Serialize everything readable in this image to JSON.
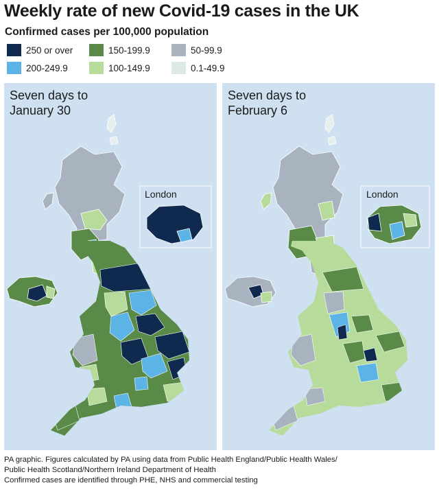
{
  "header": {
    "title": "Weekly rate of new Covid-19 cases in the UK",
    "subtitle": "Confirmed cases per 100,000 population"
  },
  "legend": [
    {
      "label": "250 or over",
      "color": "#0f2a4e"
    },
    {
      "label": "200-249.9",
      "color": "#5bb3e6"
    },
    {
      "label": "150-199.9",
      "color": "#5a8a48"
    },
    {
      "label": "100-149.9",
      "color": "#b6db9a"
    },
    {
      "label": "50-99.9",
      "color": "#a9b3bf"
    },
    {
      "label": "0.1-49.9",
      "color": "#dde9e6"
    }
  ],
  "maps": [
    {
      "period_line1": "Seven days to",
      "period_line2": "January 30",
      "inset_label": "London"
    },
    {
      "period_line1": "Seven days to",
      "period_line2": "February 6",
      "inset_label": "London"
    }
  ],
  "footer": {
    "line1": "PA graphic. Figures calculated by PA using data from Public Health England/Public Health Wales/",
    "line2": "Public Health Scotland/Northern Ireland Department of Health",
    "line3": "Confirmed cases are identified through PHE, NHS and commercial testing"
  }
}
